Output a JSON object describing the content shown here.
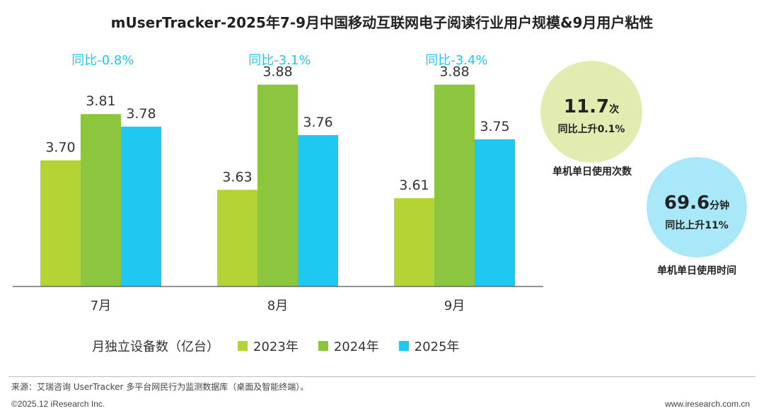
{
  "title": "mUserTracker-2025年7-9月中国移动互联网电子阅读行业用户规模&9月用户粘性",
  "chart_data": {
    "type": "bar",
    "categories": [
      "7月",
      "8月",
      "9月"
    ],
    "series": [
      {
        "name": "2023年",
        "color": "#b4d334",
        "values": [
          3.7,
          3.63,
          3.61
        ]
      },
      {
        "name": "2024年",
        "color": "#8cc63f",
        "values": [
          3.81,
          3.88,
          3.88
        ]
      },
      {
        "name": "2025年",
        "color": "#1ec8f0",
        "values": [
          3.78,
          3.76,
          3.75
        ]
      }
    ],
    "value_labels": {
      "2023年": [
        "3.70",
        "3.63",
        "3.61"
      ],
      "2024年": [
        "3.81",
        "3.88",
        "3.88"
      ],
      "2025年": [
        "3.78",
        "3.76",
        "3.75"
      ]
    },
    "yoy": [
      "同比-0.8%",
      "同比-3.1%",
      "同比-3.4%"
    ],
    "yoy_color": "#1ec8f0",
    "ylabel": "月独立设备数（亿台）",
    "ylim": [
      3.4,
      3.95
    ],
    "grid": false,
    "legend_position": "bottom"
  },
  "metrics": {
    "frequency": {
      "value": "11.7",
      "unit": "次",
      "change": "同比上升0.1%",
      "label": "单机单日使用次数",
      "color": "#e2ebb0"
    },
    "duration": {
      "value": "69.6",
      "unit": "分钟",
      "change": "同比上升11%",
      "label": "单机单日使用时间",
      "color": "#a8e8f8"
    }
  },
  "footer": {
    "source": "来源：艾瑞咨询 UserTracker 多平台网民行为监测数据库（桌面及智能终端）。",
    "copyright": "©2025.12 iResearch Inc.",
    "site": "www.iresearch.com.cn"
  }
}
